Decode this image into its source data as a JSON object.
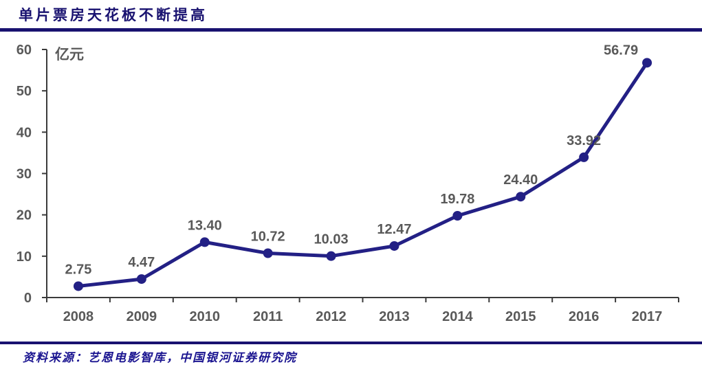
{
  "header": {
    "title": "单片票房天花板不断提高"
  },
  "footer": {
    "source": "资料来源：艺恩电影智库，中国银河证券研究院"
  },
  "colors": {
    "brand_navy": "#191270",
    "line": "#232085",
    "label_gray": "#595959",
    "axis": "#3a3a3a"
  },
  "chart_data": {
    "type": "line",
    "title": "单片票房天花板不断提高",
    "unit_label": "亿元",
    "categories": [
      "2008",
      "2009",
      "2010",
      "2011",
      "2012",
      "2013",
      "2014",
      "2015",
      "2016",
      "2017"
    ],
    "series": [
      {
        "name": "单片票房",
        "values": [
          2.75,
          4.47,
          13.4,
          10.72,
          10.03,
          12.47,
          19.78,
          24.4,
          33.92,
          56.79
        ],
        "labels": [
          "2.75",
          "4.47",
          "13.40",
          "10.72",
          "10.03",
          "12.47",
          "19.78",
          "24.40",
          "33.92",
          "56.79"
        ]
      }
    ],
    "xlabel": "",
    "ylabel": "亿元",
    "ylim": [
      0,
      60
    ],
    "yticks": [
      0,
      10,
      20,
      30,
      40,
      50,
      60
    ],
    "grid": false,
    "legend": "none",
    "marker": "circle",
    "source": "资料来源：艺恩电影智库，中国银河证券研究院"
  }
}
